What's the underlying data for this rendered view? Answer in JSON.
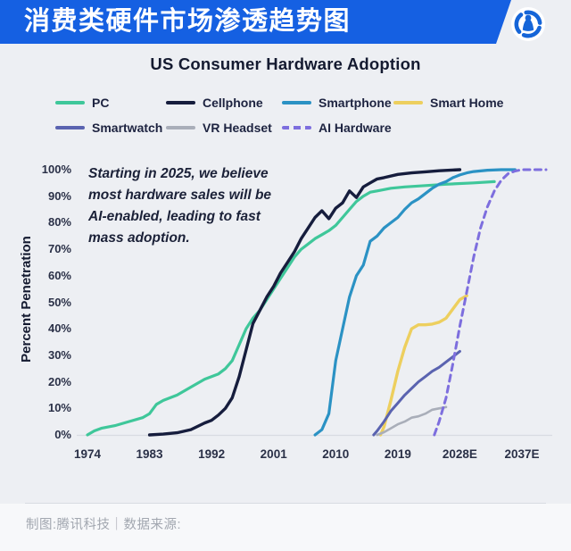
{
  "banner": {
    "title": "消费类硬件市场渗透趋势图",
    "logo_icon": "tencent-tech-logo",
    "accent_color": "#1560e2"
  },
  "chart": {
    "annotation_lines": [
      "Starting in 2025, we believe",
      "most hardware sales will be",
      "AI-enabled, leading to fast",
      "mass adoption."
    ]
  },
  "chart_data": {
    "type": "line",
    "title": "US Consumer Hardware Adoption",
    "xlabel": "",
    "ylabel": "Percent Penetration",
    "ylim": [
      0,
      100
    ],
    "xlim": [
      1972,
      2041
    ],
    "grid": false,
    "legend_position": "top",
    "annotation": "Starting in 2025, we believe most hardware sales will be AI-enabled, leading to fast mass adoption.",
    "y_ticks": [
      0,
      10,
      20,
      30,
      40,
      50,
      60,
      70,
      80,
      90,
      100
    ],
    "y_tick_suffix": "%",
    "x_ticks": [
      {
        "value": 1974,
        "label": "1974"
      },
      {
        "value": 1983,
        "label": "1983"
      },
      {
        "value": 1992,
        "label": "1992"
      },
      {
        "value": 2001,
        "label": "2001"
      },
      {
        "value": 2010,
        "label": "2010"
      },
      {
        "value": 2019,
        "label": "2019"
      },
      {
        "value": 2028,
        "label": "2028E"
      },
      {
        "value": 2037,
        "label": "2037E"
      }
    ],
    "series": [
      {
        "name": "PC",
        "color": "#3fc79a",
        "dash": false,
        "width": 3.2,
        "points": [
          [
            1974,
            0
          ],
          [
            1975,
            1.5
          ],
          [
            1976,
            2.5
          ],
          [
            1978,
            3.5
          ],
          [
            1980,
            5
          ],
          [
            1982,
            6.5
          ],
          [
            1983,
            8
          ],
          [
            1984,
            11.5
          ],
          [
            1985,
            13
          ],
          [
            1987,
            15
          ],
          [
            1989,
            18
          ],
          [
            1991,
            21
          ],
          [
            1993,
            23
          ],
          [
            1994,
            25
          ],
          [
            1995,
            28
          ],
          [
            1996,
            34
          ],
          [
            1997,
            40
          ],
          [
            1998,
            44
          ],
          [
            1999,
            47
          ],
          [
            2000,
            51
          ],
          [
            2001,
            55
          ],
          [
            2002,
            59
          ],
          [
            2003,
            63
          ],
          [
            2004,
            67
          ],
          [
            2005,
            70
          ],
          [
            2006,
            72
          ],
          [
            2007,
            74
          ],
          [
            2008,
            75.5
          ],
          [
            2009,
            77
          ],
          [
            2010,
            79
          ],
          [
            2011,
            82
          ],
          [
            2012,
            85
          ],
          [
            2013,
            88
          ],
          [
            2014,
            90
          ],
          [
            2015,
            91.5
          ],
          [
            2016,
            92
          ],
          [
            2018,
            93
          ],
          [
            2020,
            93.5
          ],
          [
            2023,
            94
          ],
          [
            2026,
            94.5
          ],
          [
            2030,
            95
          ],
          [
            2033,
            95.5
          ]
        ]
      },
      {
        "name": "Cellphone",
        "color": "#161d3d",
        "dash": false,
        "width": 3.4,
        "points": [
          [
            1983,
            0
          ],
          [
            1985,
            0.3
          ],
          [
            1987,
            0.8
          ],
          [
            1989,
            2
          ],
          [
            1991,
            4.5
          ],
          [
            1992,
            5.5
          ],
          [
            1993,
            7.5
          ],
          [
            1994,
            10
          ],
          [
            1995,
            14
          ],
          [
            1996,
            22
          ],
          [
            1997,
            32
          ],
          [
            1998,
            42
          ],
          [
            1999,
            47
          ],
          [
            2000,
            52
          ],
          [
            2001,
            56
          ],
          [
            2002,
            61
          ],
          [
            2003,
            65
          ],
          [
            2004,
            69
          ],
          [
            2005,
            74
          ],
          [
            2006,
            78
          ],
          [
            2007,
            82
          ],
          [
            2008,
            84.5
          ],
          [
            2009,
            81.5
          ],
          [
            2010,
            85.5
          ],
          [
            2011,
            87.5
          ],
          [
            2012,
            92
          ],
          [
            2013,
            89.5
          ],
          [
            2014,
            93.5
          ],
          [
            2015,
            95
          ],
          [
            2016,
            96.5
          ],
          [
            2017,
            97
          ],
          [
            2019,
            98.2
          ],
          [
            2021,
            98.8
          ],
          [
            2023,
            99.2
          ],
          [
            2025,
            99.6
          ],
          [
            2028,
            100
          ]
        ]
      },
      {
        "name": "Smartphone",
        "color": "#2b92c4",
        "dash": false,
        "width": 3.2,
        "points": [
          [
            2007,
            0
          ],
          [
            2008,
            2
          ],
          [
            2009,
            8
          ],
          [
            2010,
            28
          ],
          [
            2011,
            40
          ],
          [
            2012,
            52
          ],
          [
            2013,
            60
          ],
          [
            2014,
            64
          ],
          [
            2015,
            73
          ],
          [
            2016,
            75
          ],
          [
            2017,
            78
          ],
          [
            2018,
            80
          ],
          [
            2019,
            82
          ],
          [
            2020,
            85
          ],
          [
            2021,
            87.5
          ],
          [
            2022,
            89
          ],
          [
            2023,
            91
          ],
          [
            2024,
            93
          ],
          [
            2025,
            94.5
          ],
          [
            2026,
            95.5
          ],
          [
            2027,
            97
          ],
          [
            2028,
            98
          ],
          [
            2029,
            98.8
          ],
          [
            2030,
            99.3
          ],
          [
            2032,
            99.8
          ],
          [
            2034,
            100
          ],
          [
            2036,
            100
          ]
        ]
      },
      {
        "name": "Smart Home",
        "color": "#edcf5e",
        "dash": false,
        "width": 3.4,
        "points": [
          [
            2016.5,
            0
          ],
          [
            2017,
            3
          ],
          [
            2018,
            13
          ],
          [
            2019,
            24
          ],
          [
            2020,
            33
          ],
          [
            2021,
            40
          ],
          [
            2022,
            41.5
          ],
          [
            2023,
            41.5
          ],
          [
            2024,
            41.8
          ],
          [
            2025,
            42.5
          ],
          [
            2026,
            44
          ],
          [
            2027,
            47.5
          ],
          [
            2028,
            51
          ],
          [
            2029,
            52.5
          ]
        ]
      },
      {
        "name": "Smartwatch",
        "color": "#5a63b0",
        "dash": false,
        "width": 3,
        "points": [
          [
            2015.5,
            0
          ],
          [
            2016,
            1.5
          ],
          [
            2017,
            5
          ],
          [
            2018,
            9
          ],
          [
            2019,
            12
          ],
          [
            2020,
            15
          ],
          [
            2021,
            17.5
          ],
          [
            2022,
            20
          ],
          [
            2023,
            22
          ],
          [
            2024,
            24
          ],
          [
            2025,
            25.5
          ],
          [
            2026,
            27.5
          ],
          [
            2027,
            29.5
          ],
          [
            2028,
            31.5
          ]
        ]
      },
      {
        "name": "VR Headset",
        "color": "#a9aeb9",
        "dash": false,
        "width": 2.6,
        "points": [
          [
            2016,
            0
          ],
          [
            2017,
            1
          ],
          [
            2018,
            2.5
          ],
          [
            2019,
            4
          ],
          [
            2020,
            5
          ],
          [
            2021,
            6.5
          ],
          [
            2022,
            7
          ],
          [
            2023,
            8
          ],
          [
            2024,
            9.5
          ],
          [
            2025,
            10
          ],
          [
            2026,
            10.5
          ]
        ]
      },
      {
        "name": "AI Hardware",
        "color": "#7d6ede",
        "dash": true,
        "width": 3,
        "points": [
          [
            2024.3,
            0
          ],
          [
            2025,
            5
          ],
          [
            2026,
            14
          ],
          [
            2027,
            27
          ],
          [
            2028,
            41
          ],
          [
            2029,
            54
          ],
          [
            2030,
            67
          ],
          [
            2031,
            78
          ],
          [
            2032,
            86
          ],
          [
            2033,
            92
          ],
          [
            2034,
            96
          ],
          [
            2035,
            98.5
          ],
          [
            2036,
            99.5
          ],
          [
            2037,
            100
          ],
          [
            2040.5,
            100
          ]
        ]
      }
    ]
  },
  "footer": {
    "credit": "制图:腾讯科技｜数据来源:"
  }
}
